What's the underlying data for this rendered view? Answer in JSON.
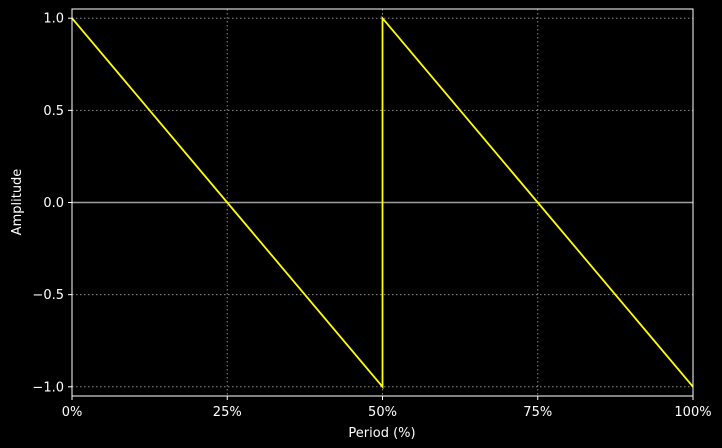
{
  "chart_data": {
    "type": "line",
    "xlabel": "Period (%)",
    "ylabel": "Amplitude",
    "xlim": [
      0,
      100
    ],
    "ylim": [
      -1.05,
      1.05
    ],
    "x_ticks": [
      0,
      25,
      50,
      75,
      100
    ],
    "x_tick_labels": [
      "0%",
      "25%",
      "50%",
      "75%",
      "100%"
    ],
    "y_ticks": [
      -1.0,
      -0.5,
      0.0,
      0.5,
      1.0
    ],
    "y_tick_labels": [
      "−1.0",
      "−0.5",
      "0.0",
      "0.5",
      "1.0"
    ],
    "grid": true,
    "zero_line": true,
    "series": [
      {
        "color": "#ffff00",
        "x": [
          0,
          50,
          50,
          100
        ],
        "y": [
          1.0,
          -1.0,
          1.0,
          -1.0
        ]
      }
    ],
    "colors": {
      "background": "#000000",
      "axes": "#ffffff",
      "grid": "#b0b0b0",
      "zero_line": "#a0a0a0"
    }
  }
}
